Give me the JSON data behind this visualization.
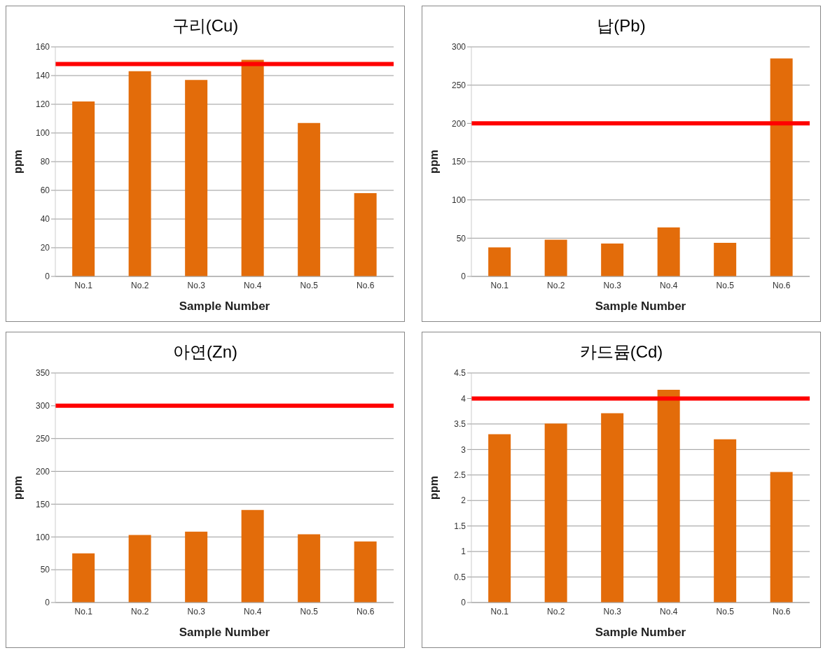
{
  "chart_data": [
    {
      "type": "bar",
      "title": "구리(Cu)",
      "xlabel": "Sample Number",
      "ylabel": "ppm",
      "categories": [
        "No.1",
        "No.2",
        "No.3",
        "No.4",
        "No.5",
        "No.6"
      ],
      "values": [
        122,
        143,
        137,
        151,
        107,
        58
      ],
      "color": "#e36c0a",
      "ylim": [
        0,
        160
      ],
      "yticks": [
        0,
        20,
        40,
        60,
        80,
        100,
        120,
        140,
        160
      ],
      "grid": "y",
      "ref_lines": [
        {
          "axis": "y",
          "value": 148,
          "color": "#ff0000"
        }
      ]
    },
    {
      "type": "bar",
      "title": "납(Pb)",
      "xlabel": "Sample Number",
      "ylabel": "ppm",
      "categories": [
        "No.1",
        "No.2",
        "No.3",
        "No.4",
        "No.5",
        "No.6"
      ],
      "values": [
        38,
        48,
        43,
        64,
        44,
        285
      ],
      "color": "#e36c0a",
      "ylim": [
        0,
        300
      ],
      "yticks": [
        0,
        50,
        100,
        150,
        200,
        250,
        300
      ],
      "grid": "y",
      "ref_lines": [
        {
          "axis": "y",
          "value": 200,
          "color": "#ff0000"
        }
      ]
    },
    {
      "type": "bar",
      "title": "아연(Zn)",
      "xlabel": "Sample Number",
      "ylabel": "ppm",
      "categories": [
        "No.1",
        "No.2",
        "No.3",
        "No.4",
        "No.5",
        "No.6"
      ],
      "values": [
        75,
        103,
        108,
        141,
        104,
        93
      ],
      "color": "#e36c0a",
      "ylim": [
        0,
        350
      ],
      "yticks": [
        0,
        50,
        100,
        150,
        200,
        250,
        300,
        350
      ],
      "grid": "y",
      "ref_lines": [
        {
          "axis": "y",
          "value": 300,
          "color": "#ff0000"
        }
      ]
    },
    {
      "type": "bar",
      "title": "카드뮴(Cd)",
      "xlabel": "Sample Number",
      "ylabel": "ppm",
      "categories": [
        "No.1",
        "No.2",
        "No.3",
        "No.4",
        "No.5",
        "No.6"
      ],
      "values": [
        3.3,
        3.51,
        3.71,
        4.17,
        3.2,
        2.56
      ],
      "color": "#e36c0a",
      "ylim": [
        0,
        4.5
      ],
      "yticks": [
        0,
        0.5,
        1,
        1.5,
        2,
        2.5,
        3,
        3.5,
        4,
        4.5
      ],
      "grid": "y",
      "ref_lines": [
        {
          "axis": "y",
          "value": 4,
          "color": "#ff0000"
        }
      ]
    }
  ]
}
